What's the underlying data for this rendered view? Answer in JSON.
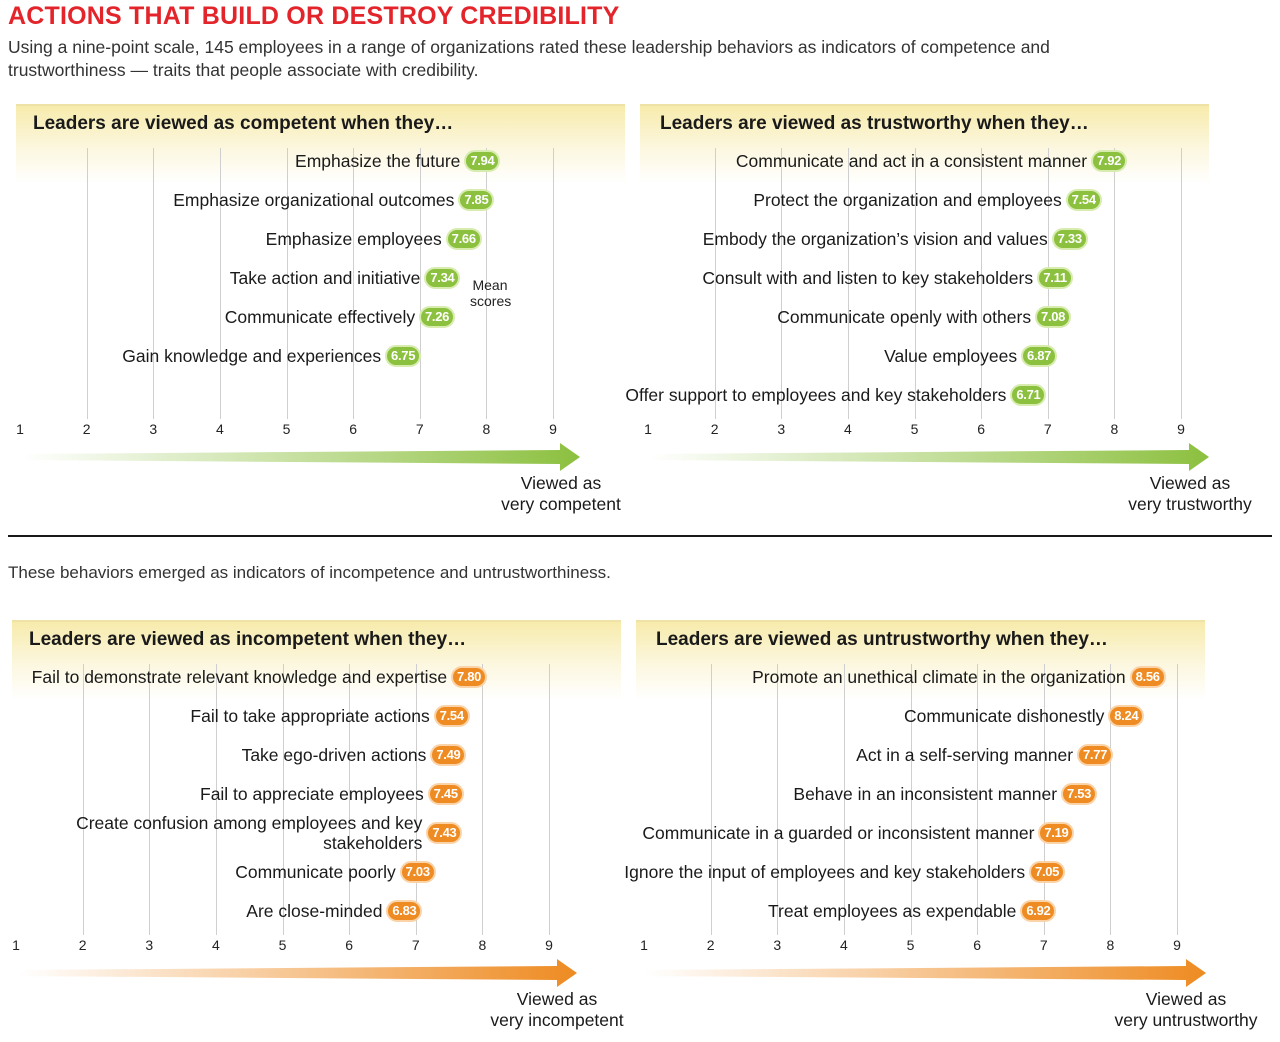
{
  "header": {
    "title": "ACTIONS THAT BUILD OR DESTROY CREDIBILITY",
    "intro": "Using a nine-point scale, 145 employees in a range of organizations rated these leadership behaviors as indicators of competence and trustworthiness — traits that people associate with credibility.",
    "subheading": "These behaviors emerged as indicators of incompetence and untrustworthiness."
  },
  "colors": {
    "title": "#e3242b",
    "green": "#8cc03f",
    "orange": "#ee8b22",
    "band": "#f6e8a0"
  },
  "chart_data": [
    {
      "type": "dot",
      "title": "Leaders are viewed as competent when they…",
      "xlim": [
        1,
        9
      ],
      "ticks": [
        1,
        2,
        3,
        4,
        5,
        6,
        7,
        8,
        9
      ],
      "xlabel": "Viewed as\nvery competent",
      "annotation": "Mean\nscores",
      "color": "green",
      "items": [
        {
          "label": "Emphasize the future",
          "value": 7.94
        },
        {
          "label": "Emphasize organizational outcomes",
          "value": 7.85
        },
        {
          "label": "Emphasize employees",
          "value": 7.66
        },
        {
          "label": "Take action and initiative",
          "value": 7.34
        },
        {
          "label": "Communicate effectively",
          "value": 7.26
        },
        {
          "label": "Gain knowledge and experiences",
          "value": 6.75
        }
      ]
    },
    {
      "type": "dot",
      "title": "Leaders are viewed as trustworthy when they…",
      "xlim": [
        1,
        9
      ],
      "ticks": [
        1,
        2,
        3,
        4,
        5,
        6,
        7,
        8,
        9
      ],
      "xlabel": "Viewed as\nvery trustworthy",
      "color": "green",
      "items": [
        {
          "label": "Communicate and act in a consistent manner",
          "value": 7.92
        },
        {
          "label": "Protect the organization and employees",
          "value": 7.54
        },
        {
          "label": "Embody the organization’s vision and values",
          "value": 7.33
        },
        {
          "label": "Consult with and listen to key stakeholders",
          "value": 7.11
        },
        {
          "label": "Communicate openly with others",
          "value": 7.08
        },
        {
          "label": "Value employees",
          "value": 6.87
        },
        {
          "label": "Offer support to employees and key stakeholders",
          "value": 6.71
        }
      ]
    },
    {
      "type": "dot",
      "title": "Leaders are viewed as incompetent when they…",
      "xlim": [
        1,
        9
      ],
      "ticks": [
        1,
        2,
        3,
        4,
        5,
        6,
        7,
        8,
        9
      ],
      "xlabel": "Viewed as\nvery incompetent",
      "color": "orange",
      "items": [
        {
          "label": "Fail to demonstrate relevant knowledge and expertise",
          "value": 7.8
        },
        {
          "label": "Fail to take appropriate actions",
          "value": 7.54
        },
        {
          "label": "Take ego-driven actions",
          "value": 7.49
        },
        {
          "label": "Fail to appreciate employees",
          "value": 7.45
        },
        {
          "label": "Create confusion among employees and key\nstakeholders",
          "value": 7.43
        },
        {
          "label": "Communicate poorly",
          "value": 7.03
        },
        {
          "label": "Are close-minded",
          "value": 6.83
        }
      ]
    },
    {
      "type": "dot",
      "title": "Leaders are viewed as untrustworthy when they…",
      "xlim": [
        1,
        9
      ],
      "ticks": [
        1,
        2,
        3,
        4,
        5,
        6,
        7,
        8,
        9
      ],
      "xlabel": "Viewed as\nvery untrustworthy",
      "color": "orange",
      "items": [
        {
          "label": "Promote an unethical climate in the organization",
          "value": 8.56
        },
        {
          "label": "Communicate dishonestly",
          "value": 8.24
        },
        {
          "label": "Act in a self-serving manner",
          "value": 7.77
        },
        {
          "label": "Behave in an inconsistent manner",
          "value": 7.53
        },
        {
          "label": "Communicate in a guarded or inconsistent manner",
          "value": 7.19
        },
        {
          "label": "Ignore the input of employees and key stakeholders",
          "value": 7.05
        },
        {
          "label": "Treat employees as expendable",
          "value": 6.92
        }
      ]
    }
  ]
}
